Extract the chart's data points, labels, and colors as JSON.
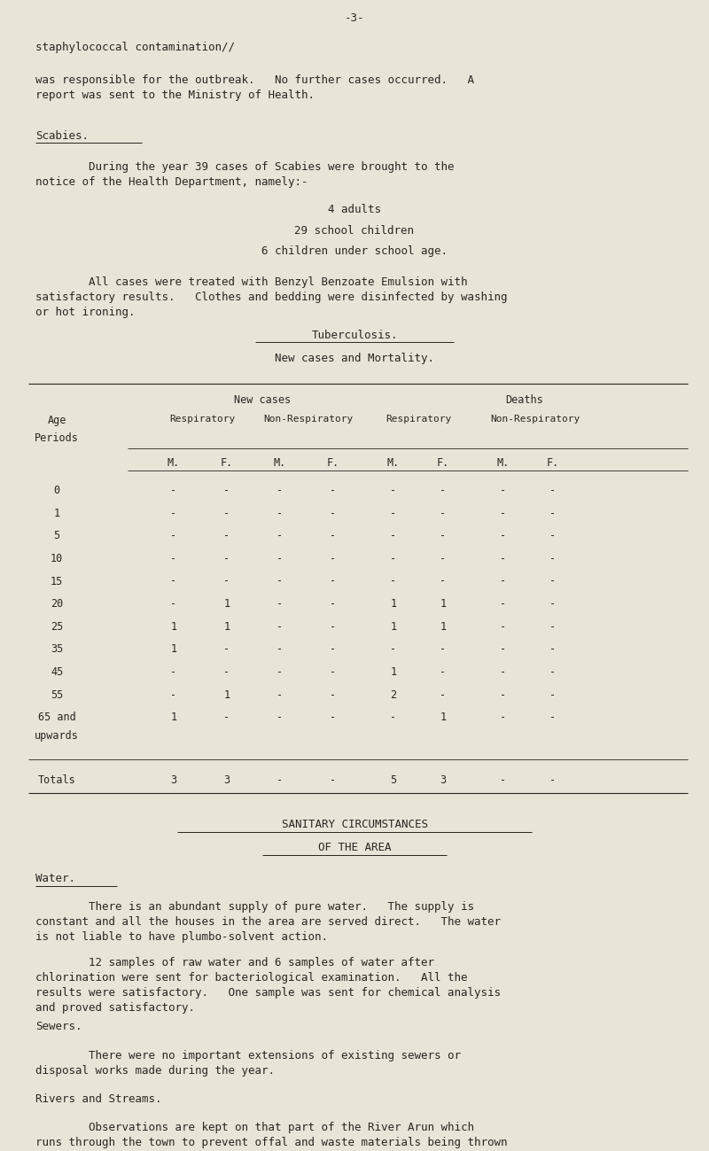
{
  "bg_color": "#e8e4d8",
  "text_color": "#2a2520",
  "page_number": "-3-",
  "line1": "staphylococcal contamination//",
  "para1": "was responsible for the outbreak.   No further cases occurred.   A\nreport was sent to the Ministry of Health.",
  "scabies_heading": "Scabies.",
  "scabies_para": "        During the year 39 cases of Scabies were brought to the\nnotice of the Health Department, namely:-",
  "scabies_list": [
    "4 adults",
    "29 school children",
    "6 children under school age."
  ],
  "scabies_para2": "        All cases were treated with Benzyl Benzoate Emulsion with\nsatisfactory results.   Clothes and bedding were disinfected by washing\nor hot ironing.",
  "tb_heading": "Tuberculosis.",
  "tb_subheading": "New cases and Mortality.",
  "table_header_row1_left": "New cases",
  "table_header_row1_right": "Deaths",
  "table_header_row2": [
    "Respiratory",
    "Non-Respiratory",
    "Respiratory",
    "Non-Respiratory"
  ],
  "table_header_mf": [
    "M.",
    "F.",
    "M.",
    "F.",
    "M.",
    "F.",
    "M.",
    "F."
  ],
  "age_periods": [
    "0",
    "1",
    "5",
    "10",
    "15",
    "20",
    "25",
    "35",
    "45",
    "55",
    "65 and upwards"
  ],
  "table_data": [
    [
      "-",
      "-",
      "-",
      "-",
      "-",
      "-",
      "-",
      "-"
    ],
    [
      "-",
      "-",
      "-",
      "-",
      "-",
      "-",
      "-",
      "-"
    ],
    [
      "-",
      "-",
      "-",
      "-",
      "-",
      "-",
      "-",
      "-"
    ],
    [
      "-",
      "-",
      "-",
      "-",
      "-",
      "-",
      "-",
      "-"
    ],
    [
      "-",
      "-",
      "-",
      "-",
      "-",
      "-",
      "-",
      "-"
    ],
    [
      "-",
      "1",
      "-",
      "-",
      "1",
      "1",
      "-",
      "-"
    ],
    [
      "1",
      "1",
      "-",
      "-",
      "1",
      "1",
      "-",
      "-"
    ],
    [
      "1",
      "-",
      "-",
      "-",
      "-",
      "-",
      "-",
      "-"
    ],
    [
      "-",
      "-",
      "-",
      "-",
      "1",
      "-",
      "-",
      "-"
    ],
    [
      "-",
      "1",
      "-",
      "-",
      "2",
      "-",
      "-",
      "-"
    ],
    [
      "1",
      "-",
      "-",
      "-",
      "-",
      "1",
      "-",
      "-"
    ]
  ],
  "totals_label": "Totals",
  "totals_data": [
    "3",
    "3",
    "-",
    "-",
    "5",
    "3",
    "-",
    "-"
  ],
  "sanitary_heading1": "SANITARY CIRCUMSTANCES",
  "sanitary_heading2": "OF THE AREA",
  "water_heading": "Water.",
  "water_para1": "        There is an abundant supply of pure water.   The supply is\nconstant and all the houses in the area are served direct.   The water\nis not liable to have plumbo-solvent action.",
  "water_para2": "        12 samples of raw water and 6 samples of water after\nchlorination were sent for bacteriological examination.   All the\nresults were satisfactory.   One sample was sent for chemical analysis\nand proved satisfactory.",
  "sewers_heading": "Sewers.",
  "sewers_para": "        There were no important extensions of existing sewers or\ndisposal works made during the year.",
  "rivers_heading": "Rivers and Streams.",
  "rivers_para": "        Observations are kept on that part of the River Arun which\nruns through the town to prevent offal and waste materials being thrown\ninto the river."
}
